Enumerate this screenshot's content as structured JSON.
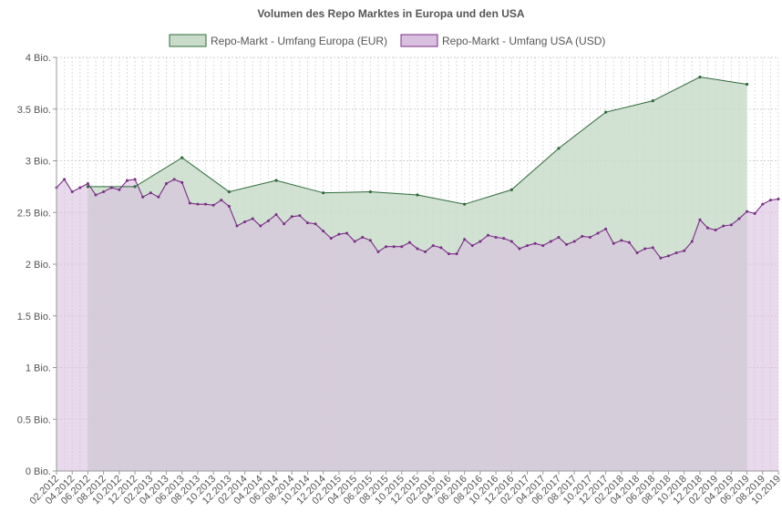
{
  "chart_data": {
    "type": "area",
    "title": "Volumen des Repo Marktes in Europa und den USA",
    "xlabel": "",
    "ylabel": "",
    "ylim": [
      0,
      4
    ],
    "grid": true,
    "legend_position": "top-center",
    "y_ticks": [
      {
        "value": 0,
        "label": "0 Bio."
      },
      {
        "value": 0.5,
        "label": "0.5 Bio."
      },
      {
        "value": 1,
        "label": "1 Bio."
      },
      {
        "value": 1.5,
        "label": "1.5 Bio."
      },
      {
        "value": 2,
        "label": "2 Bio."
      },
      {
        "value": 2.5,
        "label": "2.5 Bio."
      },
      {
        "value": 3,
        "label": "3 Bio."
      },
      {
        "value": 3.5,
        "label": "3.5 Bio."
      },
      {
        "value": 4,
        "label": "4 Bio."
      }
    ],
    "categories": [
      "02.2012",
      "03.2012",
      "04.2012",
      "05.2012",
      "06.2012",
      "07.2012",
      "08.2012",
      "09.2012",
      "10.2012",
      "11.2012",
      "12.2012",
      "01.2013",
      "02.2013",
      "03.2013",
      "04.2013",
      "05.2013",
      "06.2013",
      "07.2013",
      "08.2013",
      "09.2013",
      "10.2013",
      "11.2013",
      "12.2013",
      "01.2014",
      "02.2014",
      "03.2014",
      "04.2014",
      "05.2014",
      "06.2014",
      "07.2014",
      "08.2014",
      "09.2014",
      "10.2014",
      "11.2014",
      "12.2014",
      "01.2015",
      "02.2015",
      "03.2015",
      "04.2015",
      "05.2015",
      "06.2015",
      "07.2015",
      "08.2015",
      "09.2015",
      "10.2015",
      "11.2015",
      "12.2015",
      "01.2016",
      "02.2016",
      "03.2016",
      "04.2016",
      "05.2016",
      "06.2016",
      "07.2016",
      "08.2016",
      "09.2016",
      "10.2016",
      "11.2016",
      "12.2016",
      "01.2017",
      "02.2017",
      "03.2017",
      "04.2017",
      "05.2017",
      "06.2017",
      "07.2017",
      "08.2017",
      "09.2017",
      "10.2017",
      "11.2017",
      "12.2017",
      "01.2018",
      "02.2018",
      "03.2018",
      "04.2018",
      "05.2018",
      "06.2018",
      "07.2018",
      "08.2018",
      "09.2018",
      "10.2018",
      "11.2018",
      "12.2018",
      "01.2019",
      "02.2019",
      "03.2019",
      "04.2019",
      "05.2019",
      "06.2019",
      "07.2019",
      "08.2019",
      "09.2019",
      "10.2019"
    ],
    "x_tick_labels": [
      "02.2012",
      "04.2012",
      "06.2012",
      "08.2012",
      "10.2012",
      "12.2012",
      "02.2013",
      "04.2013",
      "06.2013",
      "08.2013",
      "10.2013",
      "12.2013",
      "02.2014",
      "04.2014",
      "06.2014",
      "08.2014",
      "10.2014",
      "12.2014",
      "02.2015",
      "04.2015",
      "06.2015",
      "08.2015",
      "10.2015",
      "12.2015",
      "02.2016",
      "04.2016",
      "06.2016",
      "08.2016",
      "10.2016",
      "12.2016",
      "02.2017",
      "04.2017",
      "06.2017",
      "08.2017",
      "10.2017",
      "12.2017",
      "02.2018",
      "04.2018",
      "06.2018",
      "08.2018",
      "10.2018",
      "12.2018",
      "02.2019",
      "04.2019",
      "06.2019",
      "08.2019",
      "10.2019"
    ],
    "series": [
      {
        "name": "Repo-Markt - Umfang Europa (EUR)",
        "color": "#2e6b3a",
        "fill": "#c9dcca",
        "points": [
          {
            "x": "06.2012",
            "y": 2.75
          },
          {
            "x": "12.2012",
            "y": 2.75
          },
          {
            "x": "06.2013",
            "y": 3.03
          },
          {
            "x": "12.2013",
            "y": 2.7
          },
          {
            "x": "06.2014",
            "y": 2.81
          },
          {
            "x": "12.2014",
            "y": 2.69
          },
          {
            "x": "06.2015",
            "y": 2.7
          },
          {
            "x": "12.2015",
            "y": 2.67
          },
          {
            "x": "06.2016",
            "y": 2.58
          },
          {
            "x": "12.2016",
            "y": 2.72
          },
          {
            "x": "06.2017",
            "y": 3.12
          },
          {
            "x": "12.2017",
            "y": 3.47
          },
          {
            "x": "06.2018",
            "y": 3.58
          },
          {
            "x": "12.2018",
            "y": 3.81
          },
          {
            "x": "06.2019",
            "y": 3.74
          }
        ]
      },
      {
        "name": "Repo-Markt - Umfang USA (USD)",
        "color": "#7a2d86",
        "fill": "#d9bfe0",
        "values": [
          2.74,
          2.82,
          2.7,
          2.74,
          2.78,
          2.67,
          2.7,
          2.74,
          2.72,
          2.81,
          2.82,
          2.65,
          2.69,
          2.65,
          2.78,
          2.82,
          2.79,
          2.59,
          2.58,
          2.58,
          2.57,
          2.62,
          2.56,
          2.37,
          2.41,
          2.44,
          2.37,
          2.42,
          2.48,
          2.39,
          2.46,
          2.47,
          2.4,
          2.39,
          2.32,
          2.25,
          2.29,
          2.3,
          2.22,
          2.26,
          2.23,
          2.12,
          2.17,
          2.17,
          2.17,
          2.21,
          2.15,
          2.12,
          2.18,
          2.16,
          2.1,
          2.1,
          2.24,
          2.18,
          2.22,
          2.28,
          2.26,
          2.25,
          2.22,
          2.15,
          2.18,
          2.2,
          2.18,
          2.22,
          2.26,
          2.19,
          2.22,
          2.27,
          2.26,
          2.3,
          2.34,
          2.2,
          2.23,
          2.21,
          2.11,
          2.15,
          2.16,
          2.06,
          2.08,
          2.11,
          2.13,
          2.22,
          2.43,
          2.35,
          2.33,
          2.37,
          2.38,
          2.44,
          2.51,
          2.49,
          2.58,
          2.62,
          2.63
        ]
      }
    ]
  }
}
